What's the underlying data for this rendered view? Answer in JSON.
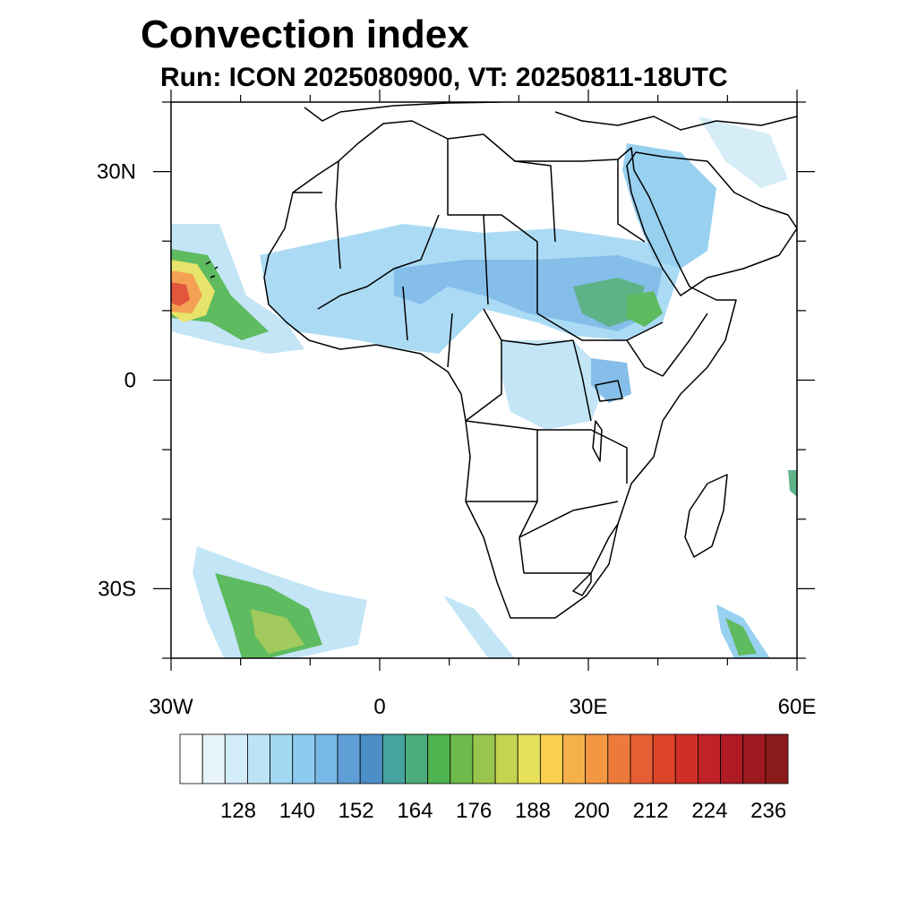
{
  "title": "Convection index",
  "subtitle": "Run: ICON 2025080900,  VT: 20250811-18UTC",
  "map": {
    "lat_ticks": [
      "30N",
      "0",
      "30S"
    ],
    "lon_ticks": [
      "30W",
      "0",
      "30E",
      "60E"
    ],
    "extent": {
      "lon": [
        -30,
        60
      ],
      "lat": [
        -40,
        40
      ]
    }
  },
  "colorbar": {
    "labels": [
      "128",
      "140",
      "152",
      "164",
      "176",
      "188",
      "200",
      "212",
      "224",
      "236"
    ],
    "colors": [
      "#ffffff",
      "#e8f4fb",
      "#d2ecf8",
      "#bde3f6",
      "#a3d8f3",
      "#8dcbef",
      "#78b8e6",
      "#5f9fd6",
      "#4c8fc7",
      "#45a3a0",
      "#4cab7a",
      "#4db44f",
      "#6dbb4b",
      "#9ac54c",
      "#c3d451",
      "#e6e15a",
      "#f8cf4f",
      "#f6b04a",
      "#f39742",
      "#ec7b3b",
      "#e65e33",
      "#de4429",
      "#d02e27",
      "#bf2228",
      "#ae1b24",
      "#9c1a1f",
      "#8b1a1a"
    ]
  }
}
